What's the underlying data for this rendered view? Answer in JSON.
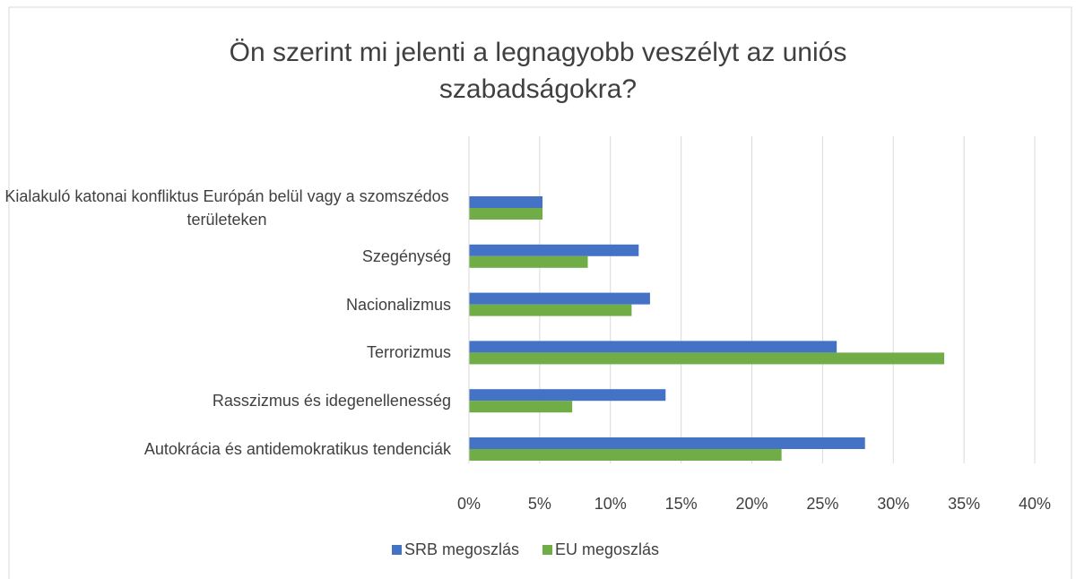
{
  "chart_data": {
    "type": "barh",
    "title": "Ön szerint mi jelenti a legnagyobb veszélyt az uniós szabadságokra?",
    "categories": [
      "Kialakuló katonai konfliktus Európán belül vagy a szomszédos területeken",
      "Szegénység",
      "Nacionalizmus",
      "Terrorizmus",
      "Rasszizmus és idegenellenesség",
      "Autokrácia és antidemokratikus tendenciák"
    ],
    "series": [
      {
        "name": "SRB megoszlás",
        "color": "#4472c4",
        "values": [
          5.2,
          12.0,
          12.8,
          26.0,
          13.9,
          28.0
        ]
      },
      {
        "name": "EU megoszlás",
        "color": "#70ad47",
        "values": [
          5.2,
          8.4,
          11.5,
          33.6,
          7.3,
          22.1
        ]
      }
    ],
    "xlim": [
      0,
      40
    ],
    "xticks": [
      {
        "value": 0,
        "label": "0%"
      },
      {
        "value": 5,
        "label": "5%"
      },
      {
        "value": 10,
        "label": "10%"
      },
      {
        "value": 15,
        "label": "15%"
      },
      {
        "value": 20,
        "label": "20%"
      },
      {
        "value": 25,
        "label": "25%"
      },
      {
        "value": 30,
        "label": "30%"
      },
      {
        "value": 35,
        "label": "35%"
      },
      {
        "value": 40,
        "label": "40%"
      }
    ],
    "grid": true,
    "legend": "bottom"
  }
}
